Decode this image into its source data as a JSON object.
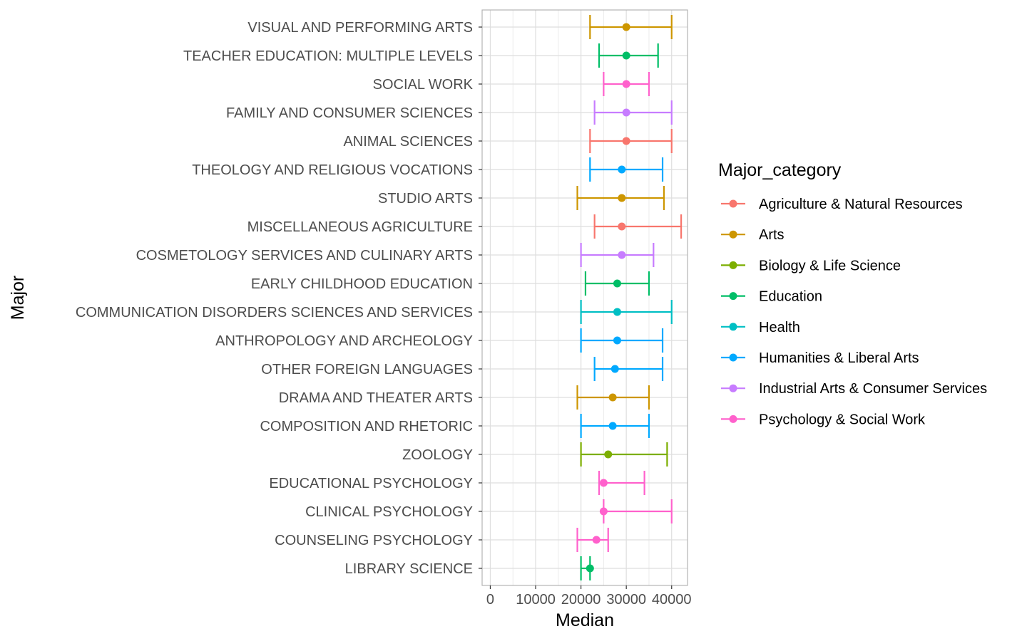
{
  "chart_data": {
    "type": "errorbar",
    "xlabel": "Median",
    "ylabel": "Major",
    "xlim": [
      -1800,
      43500
    ],
    "x_ticks": [
      0,
      10000,
      20000,
      30000,
      40000
    ],
    "x_tick_labels": [
      "0",
      "10000",
      "20000",
      "30000",
      "40000"
    ],
    "grid": true,
    "legend": {
      "title": "Major_category",
      "placement": "right",
      "entries": [
        {
          "name": "Agriculture & Natural Resources",
          "color": "#F8766D"
        },
        {
          "name": "Arts",
          "color": "#CD9600"
        },
        {
          "name": "Biology & Life Science",
          "color": "#7CAE00"
        },
        {
          "name": "Education",
          "color": "#00BE67"
        },
        {
          "name": "Health",
          "color": "#00BFC4"
        },
        {
          "name": "Humanities & Liberal Arts",
          "color": "#00A9FF"
        },
        {
          "name": "Industrial Arts & Consumer Services",
          "color": "#C77CFF"
        },
        {
          "name": "Psychology & Social Work",
          "color": "#FF61CC"
        }
      ]
    },
    "points": [
      {
        "major": "VISUAL AND PERFORMING ARTS",
        "category": "Arts",
        "median": 30000,
        "low": 22000,
        "high": 40000
      },
      {
        "major": "TEACHER EDUCATION: MULTIPLE LEVELS",
        "category": "Education",
        "median": 30000,
        "low": 24000,
        "high": 37000
      },
      {
        "major": "SOCIAL WORK",
        "category": "Psychology & Social Work",
        "median": 30000,
        "low": 25000,
        "high": 35000
      },
      {
        "major": "FAMILY AND CONSUMER SCIENCES",
        "category": "Industrial Arts & Consumer Services",
        "median": 30000,
        "low": 23000,
        "high": 40000
      },
      {
        "major": "ANIMAL SCIENCES",
        "category": "Agriculture & Natural Resources",
        "median": 30000,
        "low": 22000,
        "high": 40000
      },
      {
        "major": "THEOLOGY AND RELIGIOUS VOCATIONS",
        "category": "Humanities & Liberal Arts",
        "median": 29000,
        "low": 22000,
        "high": 38000
      },
      {
        "major": "STUDIO ARTS",
        "category": "Arts",
        "median": 29000,
        "low": 19200,
        "high": 38300
      },
      {
        "major": "MISCELLANEOUS AGRICULTURE",
        "category": "Agriculture & Natural Resources",
        "median": 29000,
        "low": 23000,
        "high": 42100
      },
      {
        "major": "COSMETOLOGY SERVICES AND CULINARY ARTS",
        "category": "Industrial Arts & Consumer Services",
        "median": 29000,
        "low": 20000,
        "high": 36000
      },
      {
        "major": "EARLY CHILDHOOD EDUCATION",
        "category": "Education",
        "median": 28000,
        "low": 21000,
        "high": 35000
      },
      {
        "major": "COMMUNICATION DISORDERS SCIENCES AND SERVICES",
        "category": "Health",
        "median": 28000,
        "low": 20000,
        "high": 40000
      },
      {
        "major": "ANTHROPOLOGY AND ARCHEOLOGY",
        "category": "Humanities & Liberal Arts",
        "median": 28000,
        "low": 20000,
        "high": 38000
      },
      {
        "major": "OTHER FOREIGN LANGUAGES",
        "category": "Humanities & Liberal Arts",
        "median": 27500,
        "low": 23000,
        "high": 38000
      },
      {
        "major": "DRAMA AND THEATER ARTS",
        "category": "Arts",
        "median": 27000,
        "low": 19200,
        "high": 35000
      },
      {
        "major": "COMPOSITION AND RHETORIC",
        "category": "Humanities & Liberal Arts",
        "median": 27000,
        "low": 20000,
        "high": 35000
      },
      {
        "major": "ZOOLOGY",
        "category": "Biology & Life Science",
        "median": 26000,
        "low": 20000,
        "high": 39000
      },
      {
        "major": "EDUCATIONAL PSYCHOLOGY",
        "category": "Psychology & Social Work",
        "median": 25000,
        "low": 24000,
        "high": 34000
      },
      {
        "major": "CLINICAL PSYCHOLOGY",
        "category": "Psychology & Social Work",
        "median": 25000,
        "low": 25000,
        "high": 40000
      },
      {
        "major": "COUNSELING PSYCHOLOGY",
        "category": "Psychology & Social Work",
        "median": 23400,
        "low": 19200,
        "high": 26000
      },
      {
        "major": "LIBRARY SCIENCE",
        "category": "Education",
        "median": 22000,
        "low": 20000,
        "high": 22000
      }
    ]
  }
}
